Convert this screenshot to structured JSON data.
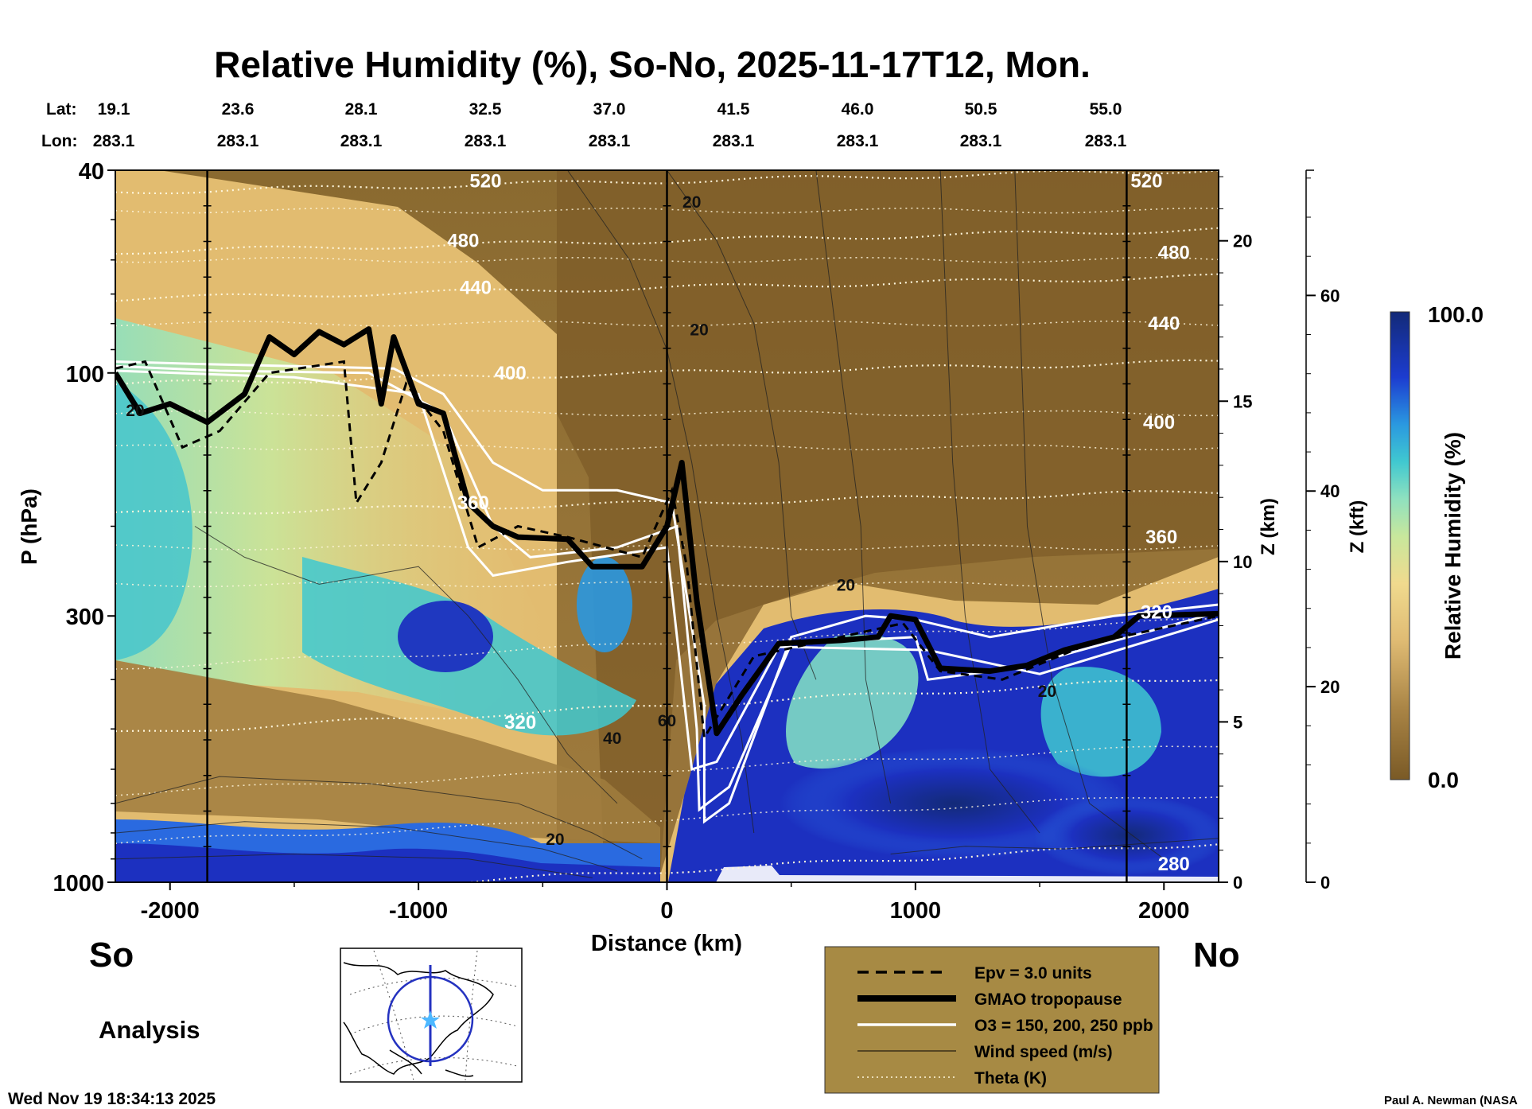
{
  "chart_data": {
    "type": "heatmap",
    "title": "Relative Humidity (%), So-No, 2025-11-17T12, Mon.",
    "xlabel": "Distance (km)",
    "ylabel": "P (hPa)",
    "zlabel_km": "Z (km)",
    "zlabel_kft": "Z (kft)",
    "colorbar_label": "Relative Humidity (%)",
    "colorbar_max": "100.0",
    "colorbar_min": "0.0",
    "x_range": [
      -2220,
      2220
    ],
    "x_ticks": [
      -2000,
      -1000,
      0,
      1000,
      2000
    ],
    "x_tick_labels": [
      "-2000",
      "-1000",
      "0",
      "1000",
      "2000"
    ],
    "y_ticks": [
      40,
      100,
      300,
      1000
    ],
    "y_tick_labels": [
      "40",
      "100",
      "300",
      "1000"
    ],
    "y_range": [
      1000,
      40
    ],
    "z_km_ticks": [
      "20",
      "15",
      "10",
      "5",
      "0"
    ],
    "z_km_values": [
      20,
      15,
      10,
      5,
      0
    ],
    "z_kft_ticks": [
      "60",
      "40",
      "20",
      "0"
    ],
    "z_kft_values": [
      60,
      40,
      20,
      0
    ],
    "lat_label": "Lat:",
    "lon_label": "Lon:",
    "lats": [
      "19.1",
      "23.6",
      "28.1",
      "32.5",
      "37.0",
      "41.5",
      "46.0",
      "50.5",
      "55.0"
    ],
    "lons": [
      "283.1",
      "283.1",
      "283.1",
      "283.1",
      "283.1",
      "283.1",
      "283.1",
      "283.1",
      "283.1"
    ],
    "lat_lon_x": [
      -2220,
      -1720,
      -1220,
      -720,
      -220,
      280,
      780,
      1280,
      1780
    ],
    "vertical_lines_x": [
      -1850,
      0,
      1850
    ],
    "theta_levels": [
      {
        "label": "520",
        "p": 42
      },
      {
        "label": "480",
        "p": 55
      },
      {
        "label": "440",
        "p": 68
      },
      {
        "label": "400",
        "p": 100
      },
      {
        "label": "360",
        "p": 180
      },
      {
        "label": "320",
        "p": 450
      },
      {
        "label": "280",
        "p": 950
      }
    ],
    "tropopause": [
      {
        "x": -2220,
        "p": 100
      },
      {
        "x": -2120,
        "p": 120
      },
      {
        "x": -2000,
        "p": 115
      },
      {
        "x": -1850,
        "p": 125
      },
      {
        "x": -1700,
        "p": 110
      },
      {
        "x": -1600,
        "p": 85
      },
      {
        "x": -1500,
        "p": 92
      },
      {
        "x": -1400,
        "p": 83
      },
      {
        "x": -1300,
        "p": 88
      },
      {
        "x": -1200,
        "p": 82
      },
      {
        "x": -1150,
        "p": 115
      },
      {
        "x": -1100,
        "p": 85
      },
      {
        "x": -1000,
        "p": 115
      },
      {
        "x": -900,
        "p": 120
      },
      {
        "x": -800,
        "p": 180
      },
      {
        "x": -700,
        "p": 200
      },
      {
        "x": -600,
        "p": 210
      },
      {
        "x": -400,
        "p": 212
      },
      {
        "x": -300,
        "p": 240
      },
      {
        "x": -100,
        "p": 240
      },
      {
        "x": 0,
        "p": 200
      },
      {
        "x": 60,
        "p": 150
      },
      {
        "x": 120,
        "p": 280
      },
      {
        "x": 200,
        "p": 510
      },
      {
        "x": 300,
        "p": 430
      },
      {
        "x": 450,
        "p": 340
      },
      {
        "x": 700,
        "p": 335
      },
      {
        "x": 850,
        "p": 330
      },
      {
        "x": 900,
        "p": 300
      },
      {
        "x": 1000,
        "p": 305
      },
      {
        "x": 1100,
        "p": 380
      },
      {
        "x": 1300,
        "p": 385
      },
      {
        "x": 1450,
        "p": 375
      },
      {
        "x": 1600,
        "p": 350
      },
      {
        "x": 1800,
        "p": 330
      },
      {
        "x": 1900,
        "p": 300
      },
      {
        "x": 2220,
        "p": 297
      }
    ],
    "epv_contour": [
      {
        "x": -2220,
        "p": 98
      },
      {
        "x": -2100,
        "p": 95
      },
      {
        "x": -1950,
        "p": 140
      },
      {
        "x": -1800,
        "p": 130
      },
      {
        "x": -1600,
        "p": 100
      },
      {
        "x": -1300,
        "p": 95
      },
      {
        "x": -1250,
        "p": 180
      },
      {
        "x": -1150,
        "p": 150
      },
      {
        "x": -1050,
        "p": 105
      },
      {
        "x": -900,
        "p": 130
      },
      {
        "x": -760,
        "p": 220
      },
      {
        "x": -600,
        "p": 200
      },
      {
        "x": -400,
        "p": 210
      },
      {
        "x": -100,
        "p": 230
      },
      {
        "x": 20,
        "p": 170
      },
      {
        "x": 80,
        "p": 240
      },
      {
        "x": 150,
        "p": 520
      },
      {
        "x": 350,
        "p": 360
      },
      {
        "x": 700,
        "p": 330
      },
      {
        "x": 950,
        "p": 310
      },
      {
        "x": 1100,
        "p": 385
      },
      {
        "x": 1350,
        "p": 400
      },
      {
        "x": 1700,
        "p": 340
      },
      {
        "x": 2220,
        "p": 300
      }
    ],
    "ozone_contours": [
      [
        {
          "x": -2220,
          "p": 95
        },
        {
          "x": -1900,
          "p": 96
        },
        {
          "x": -1500,
          "p": 97
        },
        {
          "x": -1100,
          "p": 98
        },
        {
          "x": -900,
          "p": 110
        },
        {
          "x": -700,
          "p": 150
        },
        {
          "x": -500,
          "p": 170
        },
        {
          "x": -200,
          "p": 170
        },
        {
          "x": 20,
          "p": 180
        },
        {
          "x": 150,
          "p": 450
        },
        {
          "x": 150,
          "p": 760
        },
        {
          "x": 250,
          "p": 700
        },
        {
          "x": 500,
          "p": 330
        },
        {
          "x": 800,
          "p": 300
        },
        {
          "x": 1000,
          "p": 305
        },
        {
          "x": 1300,
          "p": 330
        },
        {
          "x": 1800,
          "p": 300
        },
        {
          "x": 2220,
          "p": 285
        }
      ],
      [
        {
          "x": -2220,
          "p": 97
        },
        {
          "x": -1800,
          "p": 99
        },
        {
          "x": -1200,
          "p": 100
        },
        {
          "x": -900,
          "p": 120
        },
        {
          "x": -700,
          "p": 200
        },
        {
          "x": -550,
          "p": 230
        },
        {
          "x": -200,
          "p": 220
        },
        {
          "x": 40,
          "p": 200
        },
        {
          "x": 120,
          "p": 500
        },
        {
          "x": 130,
          "p": 720
        },
        {
          "x": 250,
          "p": 650
        },
        {
          "x": 500,
          "p": 340
        },
        {
          "x": 1000,
          "p": 330
        },
        {
          "x": 1050,
          "p": 400
        },
        {
          "x": 1400,
          "p": 380
        },
        {
          "x": 2220,
          "p": 295
        }
      ],
      [
        {
          "x": -2220,
          "p": 99
        },
        {
          "x": -1500,
          "p": 102
        },
        {
          "x": -1000,
          "p": 110
        },
        {
          "x": -800,
          "p": 220
        },
        {
          "x": -700,
          "p": 250
        },
        {
          "x": -400,
          "p": 235
        },
        {
          "x": 0,
          "p": 220
        },
        {
          "x": 100,
          "p": 600
        },
        {
          "x": 200,
          "p": 580
        },
        {
          "x": 450,
          "p": 345
        },
        {
          "x": 1050,
          "p": 350
        },
        {
          "x": 1500,
          "p": 390
        },
        {
          "x": 2220,
          "p": 305
        }
      ]
    ],
    "wind_labels": [
      {
        "label": "20",
        "x": -2140,
        "p": 118
      },
      {
        "label": "20",
        "x": 100,
        "p": 46
      },
      {
        "label": "20",
        "x": 130,
        "p": 82
      },
      {
        "label": "20",
        "x": 720,
        "p": 260
      },
      {
        "label": "60",
        "x": 0,
        "p": 480
      },
      {
        "label": "40",
        "x": -220,
        "p": 520
      },
      {
        "label": "20",
        "x": -450,
        "p": 820
      },
      {
        "label": "20",
        "x": 1530,
        "p": 420
      }
    ],
    "contour_labels_theta_right": [
      {
        "label": "520",
        "x": 1930,
        "p": 42
      },
      {
        "label": "480",
        "x": 2040,
        "p": 58
      },
      {
        "label": "440",
        "x": 2000,
        "p": 80
      },
      {
        "label": "400",
        "x": 1980,
        "p": 125
      },
      {
        "label": "360",
        "x": 1990,
        "p": 210
      },
      {
        "label": "320",
        "x": 1970,
        "p": 295
      },
      {
        "label": "280",
        "x": 2040,
        "p": 920
      }
    ],
    "contour_labels_theta_left": [
      {
        "label": "520",
        "x": -730,
        "p": 42
      },
      {
        "label": "480",
        "x": -820,
        "p": 55
      },
      {
        "label": "440",
        "x": -770,
        "p": 68
      },
      {
        "label": "400",
        "x": -630,
        "p": 100
      },
      {
        "label": "360",
        "x": -780,
        "p": 180
      },
      {
        "label": "320",
        "x": -590,
        "p": 485
      }
    ]
  },
  "labels": {
    "south": "So",
    "north": "No",
    "analysis": "Analysis",
    "timestamp": "Wed Nov 19 18:34:13 2025",
    "credit": "Paul A. Newman (NASA"
  },
  "legend": {
    "items": [
      {
        "label": "Epv = 3.0 units",
        "style": "dashed"
      },
      {
        "label": "GMAO tropopause",
        "style": "thick"
      },
      {
        "label": "O3 = 150, 200, 250 ppb",
        "style": "white"
      },
      {
        "label": "Wind speed (m/s)",
        "style": "thin"
      },
      {
        "label": "Theta (K)",
        "style": "dotted"
      }
    ],
    "background": "#a78a44"
  },
  "colors": {
    "dry": "#7a5a26",
    "moist": "#e8c578",
    "mid": "#3fc2c4",
    "wet": "#1c30c0",
    "saturated": "#142a78",
    "map_circle": "#2432c0",
    "map_star": "#4db8ff"
  }
}
